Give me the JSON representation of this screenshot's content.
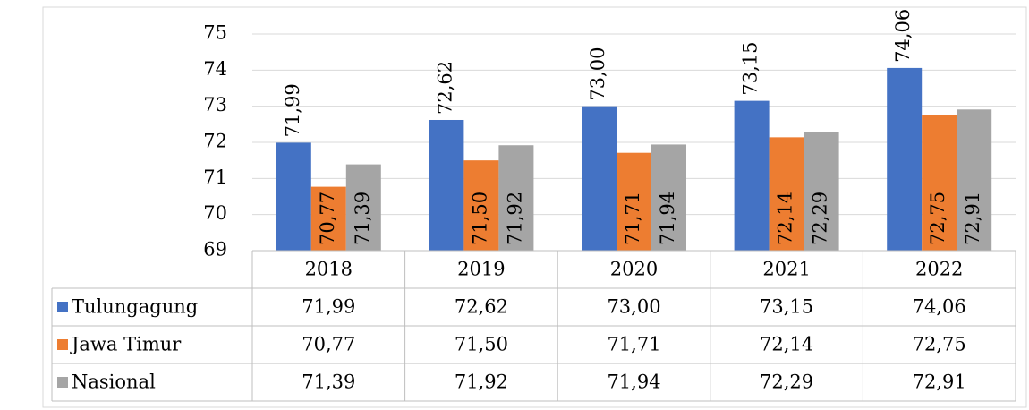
{
  "chart_data": {
    "type": "bar",
    "categories": [
      "2018",
      "2019",
      "2020",
      "2021",
      "2022"
    ],
    "series": [
      {
        "name": "Tulungagung",
        "color": "#4472c4",
        "values": [
          71.99,
          72.62,
          73.0,
          73.15,
          74.06
        ],
        "value_labels": [
          "71,99",
          "72,62",
          "73,00",
          "73,15",
          "74,06"
        ]
      },
      {
        "name": "Jawa Timur",
        "color": "#ed7d31",
        "values": [
          70.77,
          71.5,
          71.71,
          72.14,
          72.75
        ],
        "value_labels": [
          "70,77",
          "71,50",
          "71,71",
          "72,14",
          "72,75"
        ]
      },
      {
        "name": "Nasional",
        "color": "#a5a5a5",
        "values": [
          71.39,
          71.92,
          71.94,
          72.29,
          72.91
        ],
        "value_labels": [
          "71,39",
          "71,92",
          "71,94",
          "72,29",
          "72,91"
        ]
      }
    ],
    "ylim": [
      69,
      75
    ],
    "yticks": [
      69,
      70,
      71,
      72,
      73,
      74,
      75
    ],
    "grid": true,
    "legend": "table"
  }
}
